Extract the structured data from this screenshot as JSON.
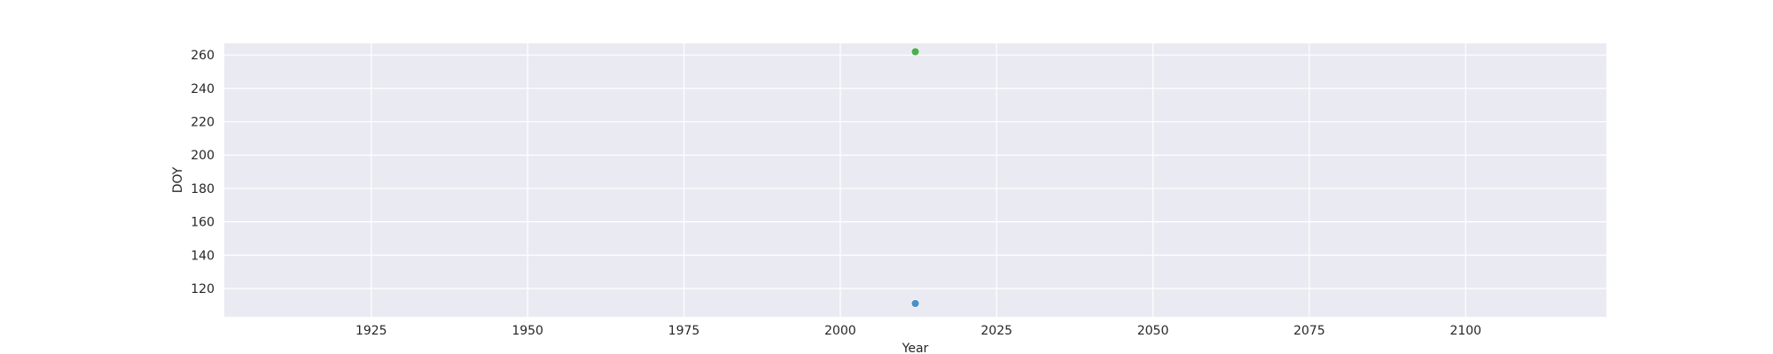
{
  "chart_data": {
    "type": "scatter",
    "title": "",
    "xlabel": "Year",
    "ylabel": "DOY",
    "xlim": [
      1901.5,
      2122.5
    ],
    "ylim": [
      103,
      267
    ],
    "xticks": [
      1925,
      1950,
      1975,
      2000,
      2025,
      2050,
      2075,
      2100
    ],
    "yticks": [
      120,
      140,
      160,
      180,
      200,
      220,
      240,
      260
    ],
    "grid": true,
    "legend": "none",
    "background": "#eaeaf2",
    "grid_color": "#ffffff",
    "series": [
      {
        "color": "#4c8fc9",
        "points": [
          {
            "x": 2012,
            "y": 111
          }
        ]
      },
      {
        "color": "#4caf50",
        "points": [
          {
            "x": 2012,
            "y": 262
          }
        ]
      }
    ]
  }
}
